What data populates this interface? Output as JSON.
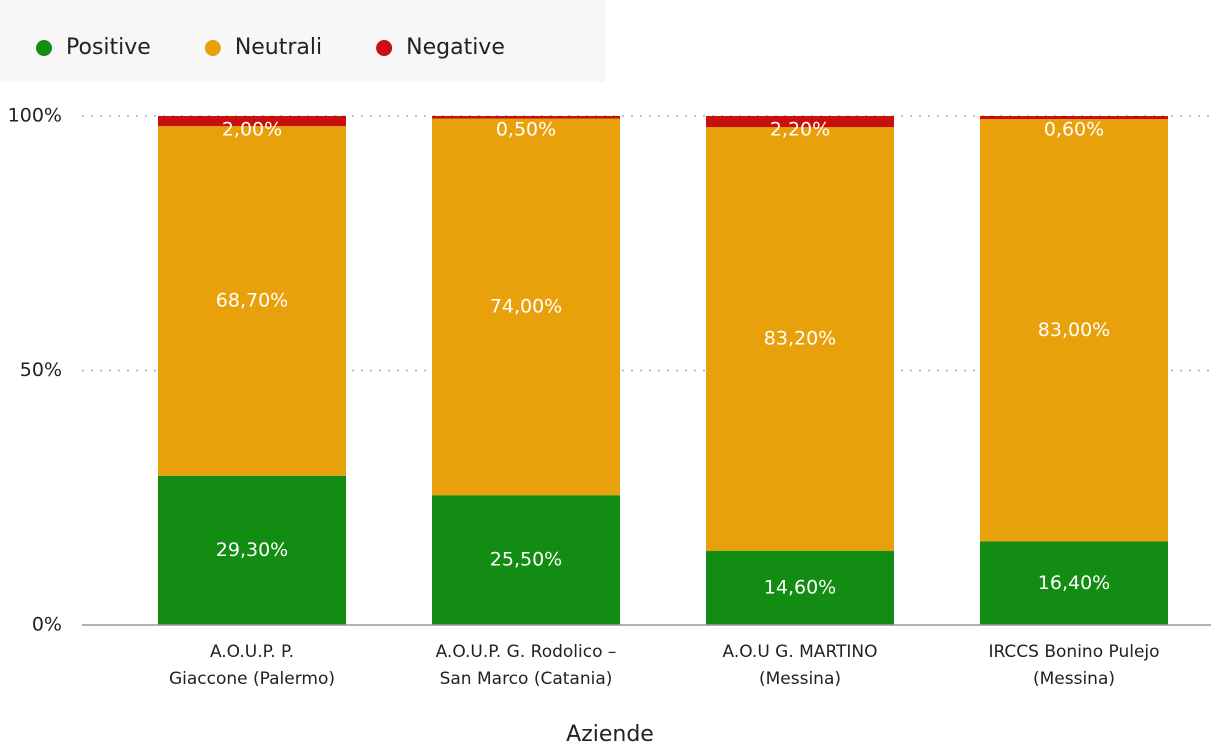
{
  "chart_data": {
    "type": "stacked_bar",
    "categories": [
      [
        "A.O.U.P. P.",
        "Giaccone (Palermo)"
      ],
      [
        "A.O.U.P. G. Rodolico –",
        "San Marco (Catania)"
      ],
      [
        "A.O.U G. MARTINO",
        "(Messina)"
      ],
      [
        "IRCCS Bonino Pulejo",
        "(Messina)"
      ]
    ],
    "series": [
      {
        "name": "Positive",
        "color": "#128c12",
        "values": [
          29.3,
          25.5,
          14.6,
          16.4
        ],
        "value_labels": [
          "29,30%",
          "25,50%",
          "14,60%",
          "16,40%"
        ]
      },
      {
        "name": "Neutrali",
        "color": "#e9a10b",
        "values": [
          68.7,
          74.0,
          83.2,
          83.0
        ],
        "value_labels": [
          "68,70%",
          "74,00%",
          "83,20%",
          "83,00%"
        ]
      },
      {
        "name": "Negative",
        "color": "#c8100f",
        "values": [
          2.0,
          0.5,
          2.2,
          0.6
        ],
        "value_labels": [
          "2,00%",
          "0,50%",
          "2,20%",
          "0,60%"
        ]
      }
    ],
    "xlabel": "Aziende",
    "ylim": [
      0,
      100
    ],
    "yticks": [
      {
        "value": 0,
        "label": "0%"
      },
      {
        "value": 50,
        "label": "50%"
      },
      {
        "value": 100,
        "label": "100%"
      }
    ],
    "grid": true,
    "legend": "top-left"
  }
}
